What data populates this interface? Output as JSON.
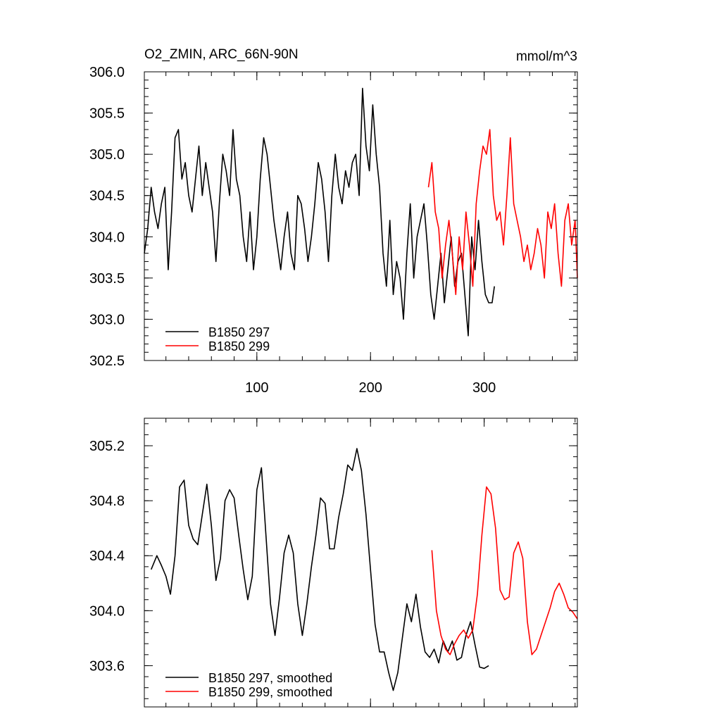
{
  "chart_data": [
    {
      "type": "line",
      "title": "O2_ZMIN, ARC_66N-90N",
      "units": "mmol/m^3",
      "xlim": [
        1,
        382
      ],
      "ylim": [
        302.5,
        306.0
      ],
      "xticks": [
        100,
        200,
        300
      ],
      "xtick_labels": [
        "100",
        "200",
        "300"
      ],
      "yticks": [
        302.5,
        303.0,
        303.5,
        304.0,
        304.5,
        305.0,
        305.5,
        306.0
      ],
      "ytick_labels": [
        "302.5",
        "303.0",
        "303.5",
        "304.0",
        "304.5",
        "305.0",
        "305.5",
        "306.0"
      ],
      "legend_position": "bottom-left",
      "series": [
        {
          "name": "B1850 297",
          "color": "#000000",
          "x": [
            1,
            4,
            7,
            10,
            13,
            16,
            19,
            22,
            25,
            28,
            31,
            34,
            37,
            40,
            43,
            46,
            49,
            52,
            55,
            58,
            61,
            64,
            67,
            70,
            73,
            76,
            79,
            82,
            85,
            88,
            91,
            94,
            97,
            100,
            103,
            106,
            109,
            112,
            115,
            118,
            121,
            124,
            127,
            130,
            133,
            136,
            139,
            142,
            145,
            148,
            151,
            154,
            157,
            160,
            163,
            166,
            169,
            172,
            175,
            178,
            181,
            184,
            187,
            190,
            193,
            196,
            199,
            202,
            205,
            208,
            211,
            214,
            217,
            220,
            223,
            226,
            229,
            232,
            235,
            238,
            241,
            244,
            247,
            250,
            253,
            256,
            259,
            262,
            265,
            268,
            271,
            274,
            277,
            280,
            283,
            286,
            289,
            292,
            295,
            298,
            301,
            304,
            307,
            309
          ],
          "y": [
            303.8,
            304.1,
            304.6,
            304.3,
            304.1,
            304.4,
            304.6,
            303.6,
            304.3,
            305.2,
            305.3,
            304.7,
            304.9,
            304.5,
            304.3,
            304.7,
            305.1,
            304.5,
            304.9,
            304.6,
            304.3,
            303.7,
            304.4,
            305.0,
            304.8,
            304.5,
            305.3,
            304.7,
            304.5,
            304.0,
            303.7,
            304.3,
            303.6,
            304.0,
            304.7,
            305.2,
            305.0,
            304.6,
            304.2,
            303.9,
            303.6,
            304.0,
            304.3,
            303.8,
            303.6,
            304.5,
            304.4,
            304.1,
            303.7,
            304.0,
            304.4,
            304.9,
            304.7,
            304.3,
            303.7,
            304.5,
            305.0,
            304.6,
            304.4,
            304.8,
            304.6,
            304.9,
            305.0,
            304.5,
            305.8,
            305.1,
            304.8,
            305.6,
            305.0,
            304.6,
            303.8,
            303.4,
            304.2,
            303.3,
            303.7,
            303.5,
            303.0,
            303.8,
            304.4,
            303.5,
            304.0,
            304.2,
            304.4,
            303.9,
            303.3,
            303.0,
            303.4,
            303.8,
            303.2,
            303.6,
            304.0,
            303.4,
            303.7,
            303.8,
            303.3,
            302.8,
            304.0,
            303.6,
            304.2,
            303.7,
            303.3,
            303.2,
            303.2,
            303.4
          ]
        },
        {
          "name": "B1850 299",
          "color": "#ff0000",
          "x": [
            251,
            254,
            257,
            260,
            263,
            266,
            269,
            272,
            275,
            278,
            281,
            284,
            287,
            290,
            293,
            296,
            299,
            302,
            305,
            308,
            311,
            314,
            317,
            320,
            323,
            326,
            329,
            332,
            335,
            338,
            341,
            344,
            347,
            350,
            353,
            356,
            359,
            362,
            365,
            368,
            371,
            374,
            377,
            380,
            382
          ],
          "y": [
            304.6,
            304.9,
            304.3,
            304.1,
            303.5,
            303.9,
            304.2,
            303.8,
            303.3,
            304.0,
            303.6,
            304.3,
            303.9,
            303.4,
            304.4,
            304.8,
            305.1,
            305.0,
            305.3,
            304.5,
            304.2,
            304.3,
            303.9,
            304.5,
            305.2,
            304.4,
            304.2,
            304.0,
            303.7,
            303.9,
            303.6,
            303.8,
            304.1,
            303.9,
            303.5,
            304.3,
            304.1,
            304.4,
            303.8,
            303.4,
            304.2,
            304.4,
            303.9,
            304.2,
            303.5
          ]
        }
      ]
    },
    {
      "type": "line",
      "title": "",
      "xlim": [
        1,
        382
      ],
      "ylim": [
        303.3,
        305.4
      ],
      "yticks": [
        303.6,
        304.0,
        304.4,
        304.8,
        305.2
      ],
      "ytick_labels": [
        "303.6",
        "304.0",
        "304.4",
        "304.8",
        "305.2"
      ],
      "legend_position": "bottom-left",
      "series": [
        {
          "name": "B1850 297, smoothed",
          "color": "#000000",
          "x": [
            7,
            12,
            16,
            20,
            24,
            28,
            32,
            36,
            40,
            44,
            48,
            52,
            56,
            60,
            64,
            68,
            72,
            76,
            80,
            84,
            88,
            92,
            96,
            100,
            104,
            108,
            112,
            116,
            120,
            124,
            128,
            132,
            136,
            140,
            144,
            148,
            152,
            156,
            160,
            164,
            168,
            172,
            176,
            180,
            184,
            188,
            192,
            196,
            200,
            204,
            208,
            212,
            216,
            220,
            224,
            228,
            232,
            236,
            240,
            244,
            248,
            252,
            256,
            260,
            264,
            268,
            272,
            276,
            280,
            284,
            288,
            292,
            296,
            300,
            304
          ],
          "y": [
            304.3,
            304.4,
            304.33,
            304.25,
            304.12,
            304.4,
            304.9,
            304.95,
            304.62,
            304.52,
            304.48,
            304.7,
            304.92,
            304.62,
            304.22,
            304.38,
            304.8,
            304.88,
            304.82,
            304.55,
            304.3,
            304.08,
            304.25,
            304.88,
            305.04,
            304.55,
            304.05,
            303.82,
            304.1,
            304.42,
            304.55,
            304.42,
            304.05,
            303.82,
            304.05,
            304.32,
            304.55,
            304.82,
            304.78,
            304.45,
            304.45,
            304.68,
            304.85,
            305.06,
            305.02,
            305.18,
            305.02,
            304.7,
            304.3,
            303.9,
            303.7,
            303.7,
            303.55,
            303.42,
            303.55,
            303.8,
            304.05,
            303.92,
            304.12,
            303.88,
            303.7,
            303.66,
            303.72,
            303.62,
            303.78,
            303.7,
            303.78,
            303.64,
            303.66,
            303.82,
            303.92,
            303.75,
            303.59,
            303.58,
            303.6
          ]
        },
        {
          "name": "B1850 299, smoothed",
          "color": "#ff0000",
          "x": [
            254,
            258,
            262,
            266,
            270,
            274,
            278,
            282,
            286,
            290,
            294,
            298,
            302,
            306,
            310,
            314,
            318,
            322,
            326,
            330,
            334,
            338,
            342,
            346,
            350,
            354,
            358,
            362,
            366,
            370,
            374,
            378,
            382
          ],
          "y": [
            304.44,
            304.0,
            303.82,
            303.72,
            303.68,
            303.76,
            303.82,
            303.86,
            303.8,
            303.86,
            304.12,
            304.55,
            304.9,
            304.85,
            304.6,
            304.15,
            304.08,
            304.1,
            304.42,
            304.5,
            304.38,
            303.92,
            303.68,
            303.72,
            303.82,
            303.92,
            304.02,
            304.14,
            304.2,
            304.12,
            304.02,
            303.99,
            303.94
          ]
        }
      ]
    }
  ]
}
